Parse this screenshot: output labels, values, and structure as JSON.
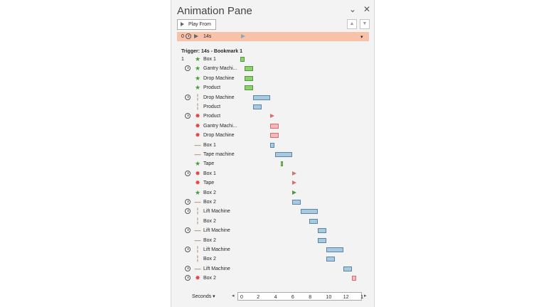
{
  "title": "Animation Pane",
  "play_from_label": "Play From",
  "up_label": "▲",
  "down_label": "▼",
  "selected": {
    "num": "0",
    "label": "14s"
  },
  "trigger_label": "Trigger: 14s - Bookmark 1",
  "rows": [
    {
      "num": "1",
      "clock": false,
      "icon": "entrance-icon",
      "label": "Box 1"
    },
    {
      "clock": true,
      "icon": "entrance-icon",
      "label": "Gantry Machi..."
    },
    {
      "clock": false,
      "icon": "entrance-icon",
      "label": "Drop Machine"
    },
    {
      "clock": false,
      "icon": "entrance-icon",
      "label": "Product"
    },
    {
      "clock": true,
      "icon": "motion-vertical-icon",
      "label": "Drop Machine"
    },
    {
      "clock": false,
      "icon": "motion-vertical-icon",
      "label": "Product"
    },
    {
      "clock": true,
      "icon": "exit-icon",
      "label": "Product"
    },
    {
      "clock": false,
      "icon": "exit-icon",
      "label": "Gantry Machi..."
    },
    {
      "clock": false,
      "icon": "exit-icon",
      "label": "Drop Machine"
    },
    {
      "clock": false,
      "icon": "motion-horizontal-icon",
      "label": "Box 1"
    },
    {
      "clock": false,
      "icon": "motion-horizontal-icon",
      "label": "Tape machine"
    },
    {
      "clock": false,
      "icon": "entrance-icon",
      "label": "Tape"
    },
    {
      "clock": true,
      "icon": "exit-icon",
      "label": "Box 1"
    },
    {
      "clock": false,
      "icon": "exit-icon",
      "label": "Tape"
    },
    {
      "clock": false,
      "icon": "entrance-icon",
      "label": "Box 2"
    },
    {
      "clock": true,
      "icon": "motion-horizontal-icon",
      "label": "Box 2"
    },
    {
      "clock": true,
      "icon": "motion-vertical-icon",
      "label": "Lift Machine"
    },
    {
      "clock": false,
      "icon": "motion-vertical-icon",
      "label": "Box 2"
    },
    {
      "clock": true,
      "icon": "motion-horizontal-icon",
      "label": "Lift Machine"
    },
    {
      "clock": false,
      "icon": "motion-horizontal-icon",
      "label": "Box 2"
    },
    {
      "clock": true,
      "icon": "motion-vertical-icon",
      "label": "Lift Machine"
    },
    {
      "clock": false,
      "icon": "motion-vertical-icon",
      "label": "Box 2"
    },
    {
      "clock": true,
      "icon": "motion-horizontal-icon",
      "label": "Lift Machine"
    },
    {
      "clock": true,
      "icon": "exit-icon",
      "label": "Box 2"
    }
  ],
  "footer": {
    "seconds_label": "Seconds ▾",
    "ticks": [
      "0",
      "2",
      "4",
      "6",
      "8",
      "10",
      "12",
      "1"
    ]
  }
}
